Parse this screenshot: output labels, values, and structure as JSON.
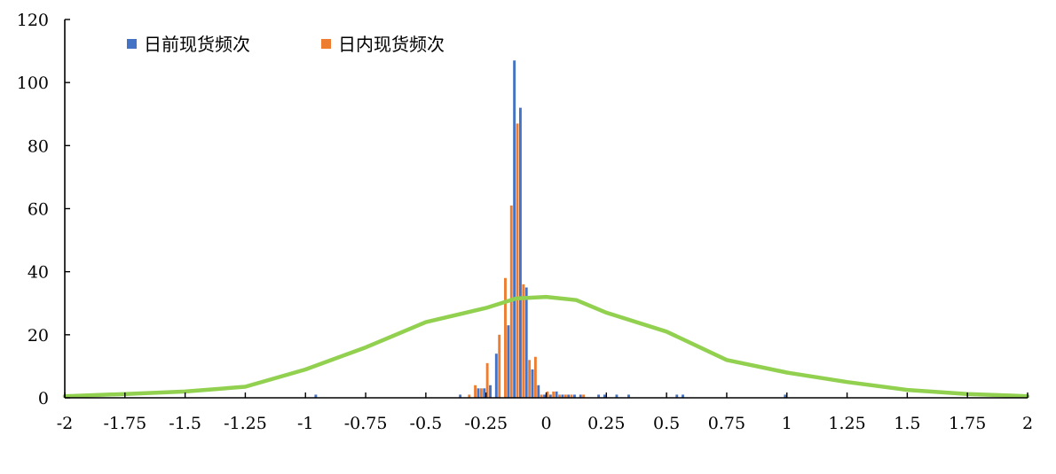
{
  "chart_data": {
    "type": "bar",
    "title": "",
    "xlabel": "",
    "ylabel": "",
    "xlim": [
      -2,
      2
    ],
    "ylim": [
      0,
      120
    ],
    "x_ticks": [
      -2,
      -1.75,
      -1.5,
      -1.25,
      -1,
      -0.75,
      -0.5,
      -0.25,
      0,
      0.25,
      0.5,
      0.75,
      1,
      1.25,
      1.5,
      1.75,
      2
    ],
    "x_tick_labels": [
      "-2",
      "-1.75",
      "-1.5",
      "-1.25",
      "-1",
      "-0.75",
      "-0.5",
      "-0.25",
      "0",
      "0.25",
      "0.5",
      "0.75",
      "1",
      "1.25",
      "1.5",
      "1.75",
      "2"
    ],
    "y_ticks": [
      0,
      20,
      40,
      60,
      80,
      100,
      120
    ],
    "y_tick_labels": [
      "0",
      "20",
      "40",
      "60",
      "80",
      "100",
      "120"
    ],
    "bin_width": 0.025,
    "legend": {
      "placement": "top-left"
    },
    "series": [
      {
        "name": "日前现货频次",
        "kind": "bar",
        "color": "#4472C4",
        "x": [
          -0.95,
          -0.35,
          -0.275,
          -0.25,
          -0.225,
          -0.2,
          -0.15,
          -0.125,
          -0.1,
          -0.075,
          -0.05,
          -0.025,
          0,
          0.025,
          0.05,
          0.075,
          0.1,
          0.125,
          0.15,
          0.225,
          0.25,
          0.3,
          0.35,
          0.55,
          0.575,
          1.0
        ],
        "values": [
          1,
          1,
          3,
          3,
          4,
          14,
          23,
          107,
          92,
          35,
          9,
          4,
          1,
          1,
          2,
          1,
          1,
          1,
          1,
          1,
          1,
          1,
          1,
          1,
          1,
          1
        ]
      },
      {
        "name": "日内现货频次",
        "kind": "bar",
        "color": "#ED7D31",
        "x": [
          -0.325,
          -0.3,
          -0.275,
          -0.25,
          -0.2,
          -0.175,
          -0.15,
          -0.125,
          -0.1,
          -0.075,
          -0.05,
          -0.025,
          0,
          0.025,
          0.05,
          0.075,
          0.1,
          0.15
        ],
        "values": [
          1,
          4,
          3,
          11,
          20,
          38,
          61,
          87,
          36,
          12,
          13,
          1,
          2,
          2,
          1,
          1,
          1,
          1
        ]
      },
      {
        "name": "",
        "kind": "line",
        "color": "#92D050",
        "x": [
          -2,
          -1.75,
          -1.5,
          -1.25,
          -1,
          -0.75,
          -0.5,
          -0.25,
          -0.125,
          0,
          0.125,
          0.25,
          0.5,
          0.75,
          1,
          1.25,
          1.5,
          1.75,
          2
        ],
        "values": [
          0.5,
          1.2,
          2,
          3.5,
          9,
          16,
          24,
          28.5,
          31.5,
          32,
          31,
          27,
          21,
          12,
          8,
          5,
          2.5,
          1.2,
          0.5
        ]
      }
    ]
  }
}
